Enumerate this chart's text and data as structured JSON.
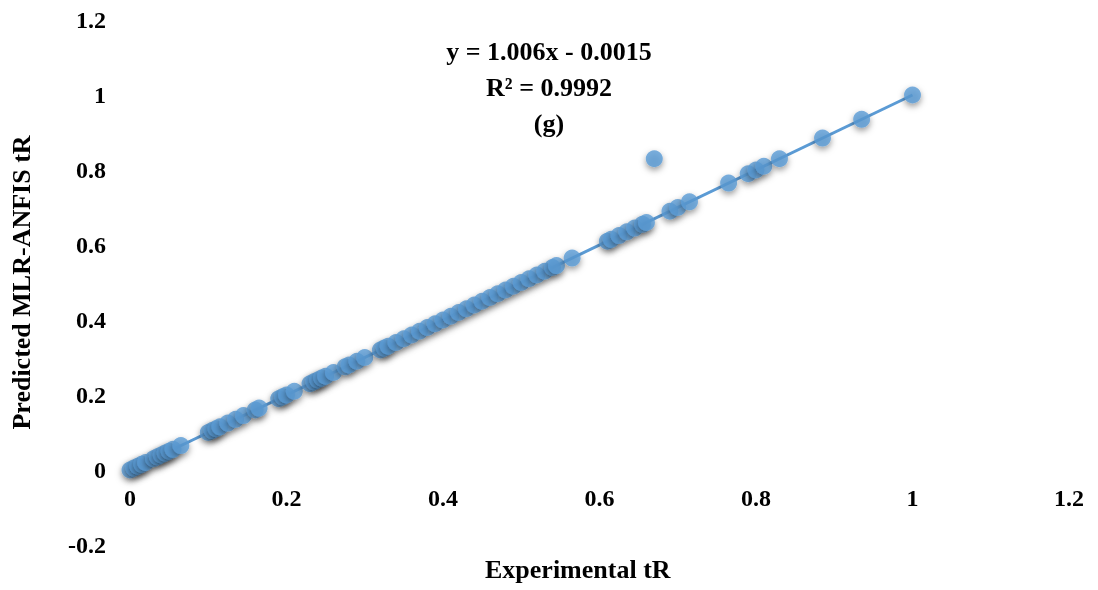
{
  "chart_data": {
    "type": "scatter",
    "xlabel": "Experimental tR",
    "ylabel": "Predicted MLR-ANFIS tR",
    "annotations": [
      "y = 1.006x - 0.0015",
      "R² = 0.9992",
      "(g)"
    ],
    "xlim": [
      0,
      1.2
    ],
    "xticks": [
      0,
      0.2,
      0.4,
      0.6,
      0.8,
      1,
      1.2
    ],
    "ylim": [
      -0.2,
      1.2
    ],
    "yticks": [
      -0.2,
      0,
      0.2,
      0.4,
      0.6,
      0.8,
      1,
      1.2
    ],
    "grid": false,
    "marker": "circle",
    "series": [
      {
        "color": "#5b9bd5",
        "x": [
          0,
          0.005,
          0.01,
          0.015,
          0.02,
          0.03,
          0.035,
          0.04,
          0.045,
          0.05,
          0.055,
          0.065,
          0.1,
          0.105,
          0.11,
          0.115,
          0.125,
          0.135,
          0.145,
          0.16,
          0.165,
          0.19,
          0.195,
          0.2,
          0.21,
          0.23,
          0.235,
          0.24,
          0.245,
          0.25,
          0.26,
          0.275,
          0.28,
          0.29,
          0.3,
          0.32,
          0.325,
          0.33,
          0.34,
          0.35,
          0.36,
          0.37,
          0.38,
          0.39,
          0.4,
          0.41,
          0.42,
          0.43,
          0.44,
          0.45,
          0.46,
          0.47,
          0.48,
          0.49,
          0.5,
          0.51,
          0.52,
          0.53,
          0.54,
          0.545,
          0.565,
          0.61,
          0.615,
          0.625,
          0.635,
          0.645,
          0.655,
          0.66,
          0.67,
          0.69,
          0.7,
          0.715,
          0.765,
          0.79,
          0.8,
          0.81,
          0.83,
          0.885,
          0.935,
          1
        ],
        "values": [
          0,
          0.005,
          0.01,
          0.015,
          0.02,
          0.03,
          0.035,
          0.04,
          0.045,
          0.05,
          0.055,
          0.065,
          0.1,
          0.105,
          0.11,
          0.115,
          0.125,
          0.135,
          0.145,
          0.16,
          0.165,
          0.19,
          0.195,
          0.2,
          0.21,
          0.23,
          0.235,
          0.24,
          0.245,
          0.25,
          0.26,
          0.275,
          0.28,
          0.29,
          0.3,
          0.32,
          0.325,
          0.33,
          0.34,
          0.35,
          0.36,
          0.37,
          0.38,
          0.39,
          0.4,
          0.41,
          0.42,
          0.43,
          0.44,
          0.45,
          0.46,
          0.47,
          0.48,
          0.49,
          0.5,
          0.51,
          0.52,
          0.53,
          0.54,
          0.545,
          0.565,
          0.61,
          0.615,
          0.625,
          0.635,
          0.645,
          0.655,
          0.66,
          0.83,
          0.69,
          0.7,
          0.715,
          0.765,
          0.79,
          0.8,
          0.81,
          0.83,
          0.885,
          0.935,
          1
        ]
      },
      {
        "type": "line",
        "color": "#5b9bd5",
        "line_style": "solid",
        "marker": "none",
        "x": [
          0,
          1
        ],
        "values": [
          0,
          1
        ]
      }
    ]
  }
}
